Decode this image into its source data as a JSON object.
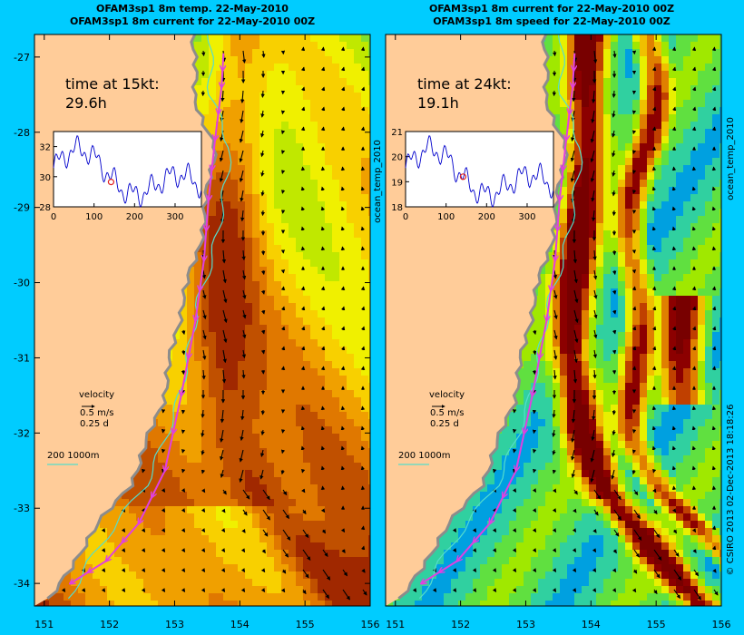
{
  "figure": {
    "background_color": "#00ccff",
    "land_color": "#ffcc99",
    "coast_color": "#8c8c8c",
    "track_color": "#e040e0",
    "isobath_color": "#55ddcc",
    "copyright": "© CSIRO 2013   02-Dec-2013 18:18:26",
    "colorbar_label": "ocean_temp_2010"
  },
  "panels": [
    {
      "id": "left",
      "title_line1": "OFAM3sp1 8m temp. 22-May-2010",
      "title_line2": "OFAM3sp1 8m current for 22-May-2010 00Z",
      "field": "temperature",
      "time_label": "time at 15kt:",
      "time_value": "29.6h",
      "inset": {
        "x_ticks": [
          "0",
          "100",
          "200",
          "300"
        ],
        "y_ticks": [
          "28",
          "30",
          "32"
        ],
        "ylim": [
          28,
          33
        ],
        "xlim": [
          0,
          365
        ],
        "marker_day": 142,
        "marker_value": 29.65
      },
      "velocity_label": "velocity",
      "velocity_speed": "0.5 m/s",
      "velocity_time": "0.25 d",
      "isobath_label": "200  1000m"
    },
    {
      "id": "right",
      "title_line1": "OFAM3sp1 8m current for 22-May-2010 00Z",
      "title_line2": "OFAM3sp1 8m speed for 22-May-2010 00Z",
      "field": "speed",
      "time_label": "time at 24kt:",
      "time_value": "19.1h",
      "inset": {
        "x_ticks": [
          "0",
          "100",
          "200",
          "300"
        ],
        "y_ticks": [
          "18",
          "19",
          "20",
          "21"
        ],
        "ylim": [
          18,
          21
        ],
        "xlim": [
          0,
          365
        ],
        "marker_day": 142,
        "marker_value": 19.2
      },
      "velocity_label": "velocity",
      "velocity_speed": "0.5 m/s",
      "velocity_time": "0.25 d",
      "isobath_label": "200  1000m"
    }
  ],
  "chart_data": [
    {
      "type": "heatmap",
      "title": "OFAM3sp1 8m temp. 22-May-2010 / OFAM3sp1 8m current for 22-May-2010 00Z",
      "x_axis": {
        "ticks": [
          "151",
          "152",
          "153",
          "154",
          "155",
          "156"
        ],
        "xlim": [
          150.85,
          156.0
        ]
      },
      "y_axis": {
        "ticks": [
          "-27",
          "-28",
          "-29",
          "-30",
          "-31",
          "-32",
          "-33",
          "-34"
        ],
        "ylim": [
          -34.3,
          -26.7
        ]
      },
      "ship_track_lon": [
        153.75,
        153.72,
        153.62,
        153.52,
        153.45,
        153.32,
        153.1,
        152.85,
        152.45,
        151.95,
        151.4
      ],
      "ship_track_lat": [
        -26.95,
        -27.4,
        -28.1,
        -28.9,
        -29.7,
        -30.5,
        -31.5,
        -32.5,
        -33.2,
        -33.7,
        -34.0
      ],
      "inset_series": {
        "x_range": [
          0,
          365
        ],
        "y_range": [
          28,
          33
        ],
        "marker": [
          142,
          29.65
        ]
      }
    },
    {
      "type": "heatmap",
      "title": "OFAM3sp1 8m current for 22-May-2010 00Z / OFAM3sp1 8m speed for 22-May-2010 00Z",
      "x_axis": {
        "ticks": [
          "151",
          "152",
          "153",
          "154",
          "155",
          "156"
        ],
        "xlim": [
          150.85,
          156.0
        ]
      },
      "y_axis": {
        "ticks": [
          "-27",
          "-28",
          "-29",
          "-30",
          "-31",
          "-32",
          "-33",
          "-34"
        ],
        "ylim": [
          -34.3,
          -26.7
        ]
      },
      "ship_track_lon": [
        153.75,
        153.72,
        153.62,
        153.52,
        153.45,
        153.32,
        153.1,
        152.85,
        152.45,
        151.95,
        151.4
      ],
      "ship_track_lat": [
        -26.95,
        -27.4,
        -28.1,
        -28.9,
        -29.7,
        -30.5,
        -31.5,
        -32.5,
        -33.2,
        -33.7,
        -34.0
      ],
      "inset_series": {
        "x_range": [
          0,
          365
        ],
        "y_range": [
          18,
          21
        ],
        "marker": [
          142,
          19.2
        ]
      }
    }
  ]
}
